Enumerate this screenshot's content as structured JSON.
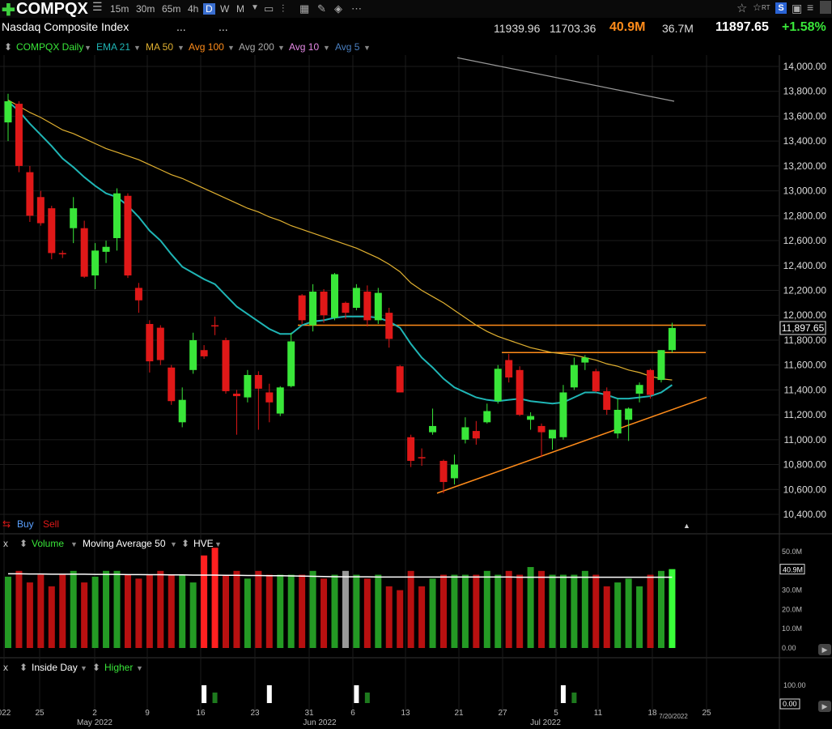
{
  "header": {
    "plus_icon": "plus-icon",
    "symbol": "COMPQX",
    "timeframes": [
      "15m",
      "30m",
      "65m",
      "4h",
      "D",
      "W",
      "M"
    ],
    "active_timeframe": "D",
    "name": "Nasdaq Composite Index",
    "dots1": "...",
    "dots2": "...",
    "high": "11939.96",
    "low": "11703.36",
    "volume": "40.9M",
    "avg_volume": "36.7M",
    "last": "11897.65",
    "change_pct": "+1.58%",
    "right_icons": [
      "star-icon",
      "rt-icon",
      "s-icon",
      "save-icon",
      "menu-icon"
    ],
    "rt_label": "RT",
    "s_label": "S"
  },
  "legend": {
    "series": "COMPQX Daily",
    "ema": "EMA 21",
    "ma": "MA 50",
    "avg100": "Avg 100",
    "avg200": "Avg 200",
    "avg10": "Avg 10",
    "avg5": "Avg 5"
  },
  "buy_label": "Buy",
  "sell_label": "Sell",
  "volume_panel": {
    "close": "x",
    "label": "Volume",
    "ma": "Moving Average 50",
    "hve": "HVE",
    "current": "40.9M",
    "ticks": [
      "50.0M",
      "40.0M",
      "30.0M",
      "20.0M",
      "10.0M",
      "0.00"
    ]
  },
  "inside_panel": {
    "close": "x",
    "label": "Inside Day",
    "higher": "Higher",
    "ticks": [
      "100.00",
      "0.00"
    ]
  },
  "price_axis": {
    "last_label": "11,897.65",
    "ticks": [
      "14,000.00",
      "13,800.00",
      "13,600.00",
      "13,400.00",
      "13,200.00",
      "13,000.00",
      "12,800.00",
      "12,600.00",
      "12,400.00",
      "12,200.00",
      "12,000.00",
      "11,800.00",
      "11,600.00",
      "11,400.00",
      "11,200.00",
      "11,000.00",
      "10,800.00",
      "10,600.00",
      "10,400.00"
    ]
  },
  "date_axis": {
    "labels": [
      "022",
      "25",
      "May 2022",
      "2",
      "9",
      "16",
      "23",
      "31",
      "Jun 2022",
      "6",
      "13",
      "21",
      "27",
      "Jul 2022",
      "5",
      "11",
      "18",
      "7/20/2022",
      "25"
    ]
  },
  "colors": {
    "up": "#39e639",
    "down": "#e01818",
    "ema": "#1fb5b5",
    "ma50": "#e0b030",
    "avg200": "#999999",
    "trendline": "#ff8c1a",
    "change": "#39e639",
    "volume_value": "#ff8c1a"
  },
  "chart_data": {
    "type": "candlestick",
    "ylim": [
      10400,
      14000
    ],
    "candles": [
      {
        "o": 13550,
        "h": 13780,
        "l": 13400,
        "c": 13720
      },
      {
        "o": 13700,
        "h": 13720,
        "l": 13150,
        "c": 13200
      },
      {
        "o": 13150,
        "h": 13200,
        "l": 12750,
        "c": 12800
      },
      {
        "o": 12950,
        "h": 13000,
        "l": 12720,
        "c": 12740
      },
      {
        "o": 12860,
        "h": 12880,
        "l": 12450,
        "c": 12500
      },
      {
        "o": 12500,
        "h": 12520,
        "l": 12460,
        "c": 12490
      },
      {
        "o": 12700,
        "h": 12950,
        "l": 12580,
        "c": 12860
      },
      {
        "o": 12700,
        "h": 12760,
        "l": 12300,
        "c": 12310
      },
      {
        "o": 12320,
        "h": 12580,
        "l": 12210,
        "c": 12520
      },
      {
        "o": 12510,
        "h": 12600,
        "l": 12420,
        "c": 12550
      },
      {
        "o": 12620,
        "h": 13020,
        "l": 12520,
        "c": 12980
      },
      {
        "o": 12960,
        "h": 12980,
        "l": 12300,
        "c": 12320
      },
      {
        "o": 12220,
        "h": 12260,
        "l": 12020,
        "c": 12120
      },
      {
        "o": 11930,
        "h": 11960,
        "l": 11540,
        "c": 11630
      },
      {
        "o": 11900,
        "h": 11920,
        "l": 11600,
        "c": 11640
      },
      {
        "o": 11580,
        "h": 11600,
        "l": 11280,
        "c": 11310
      },
      {
        "o": 11140,
        "h": 11420,
        "l": 11100,
        "c": 11320
      },
      {
        "o": 11560,
        "h": 11860,
        "l": 11530,
        "c": 11800
      },
      {
        "o": 11720,
        "h": 11760,
        "l": 11650,
        "c": 11670
      },
      {
        "o": 11920,
        "h": 11990,
        "l": 11840,
        "c": 11910
      },
      {
        "o": 11800,
        "h": 11820,
        "l": 11370,
        "c": 11390
      },
      {
        "o": 11370,
        "h": 11400,
        "l": 11040,
        "c": 11350
      },
      {
        "o": 11340,
        "h": 11560,
        "l": 11300,
        "c": 11520
      },
      {
        "o": 11520,
        "h": 11550,
        "l": 11080,
        "c": 11410
      },
      {
        "o": 11380,
        "h": 11450,
        "l": 11140,
        "c": 11300
      },
      {
        "o": 11210,
        "h": 11430,
        "l": 11190,
        "c": 11420
      },
      {
        "o": 11430,
        "h": 11860,
        "l": 11420,
        "c": 11790
      },
      {
        "o": 12160,
        "h": 12170,
        "l": 11930,
        "c": 11960
      },
      {
        "o": 11920,
        "h": 12250,
        "l": 11870,
        "c": 12190
      },
      {
        "o": 12190,
        "h": 12210,
        "l": 11940,
        "c": 12000
      },
      {
        "o": 11980,
        "h": 12340,
        "l": 11960,
        "c": 12330
      },
      {
        "o": 12100,
        "h": 12110,
        "l": 11970,
        "c": 12020
      },
      {
        "o": 12060,
        "h": 12250,
        "l": 12040,
        "c": 12220
      },
      {
        "o": 12190,
        "h": 12240,
        "l": 11910,
        "c": 11960
      },
      {
        "o": 11960,
        "h": 12220,
        "l": 11930,
        "c": 12180
      },
      {
        "o": 12020,
        "h": 12060,
        "l": 11740,
        "c": 11810
      },
      {
        "o": 11590,
        "h": 11600,
        "l": 11380,
        "c": 11380
      },
      {
        "o": 11020,
        "h": 11040,
        "l": 10780,
        "c": 10830
      },
      {
        "o": 10860,
        "h": 10930,
        "l": 10790,
        "c": 10850
      },
      {
        "o": 11060,
        "h": 11250,
        "l": 11040,
        "c": 11110
      },
      {
        "o": 10830,
        "h": 10840,
        "l": 10570,
        "c": 10660
      },
      {
        "o": 10690,
        "h": 10880,
        "l": 10640,
        "c": 10800
      },
      {
        "o": 11000,
        "h": 11180,
        "l": 10970,
        "c": 11100
      },
      {
        "o": 11070,
        "h": 11150,
        "l": 10960,
        "c": 11010
      },
      {
        "o": 11140,
        "h": 11290,
        "l": 11130,
        "c": 11230
      },
      {
        "o": 11310,
        "h": 11600,
        "l": 11290,
        "c": 11570
      },
      {
        "o": 11640,
        "h": 11690,
        "l": 11460,
        "c": 11500
      },
      {
        "o": 11560,
        "h": 11590,
        "l": 11190,
        "c": 11200
      },
      {
        "o": 11160,
        "h": 11220,
        "l": 11080,
        "c": 11190
      },
      {
        "o": 11110,
        "h": 11130,
        "l": 10860,
        "c": 11060
      },
      {
        "o": 11010,
        "h": 11080,
        "l": 10920,
        "c": 11080
      },
      {
        "o": 11020,
        "h": 11440,
        "l": 11000,
        "c": 11380
      },
      {
        "o": 11420,
        "h": 11660,
        "l": 11400,
        "c": 11600
      },
      {
        "o": 11620,
        "h": 11680,
        "l": 11560,
        "c": 11660
      },
      {
        "o": 11550,
        "h": 11570,
        "l": 11380,
        "c": 11390
      },
      {
        "o": 11390,
        "h": 11420,
        "l": 11200,
        "c": 11240
      },
      {
        "o": 11050,
        "h": 11330,
        "l": 11010,
        "c": 11240
      },
      {
        "o": 11160,
        "h": 11260,
        "l": 10990,
        "c": 11250
      },
      {
        "o": 11370,
        "h": 11460,
        "l": 11300,
        "c": 11440
      },
      {
        "o": 11560,
        "h": 11570,
        "l": 11330,
        "c": 11360
      },
      {
        "o": 11480,
        "h": 11720,
        "l": 11460,
        "c": 11720
      },
      {
        "o": 11720,
        "h": 11940,
        "l": 11700,
        "c": 11898
      }
    ],
    "ema21": [
      13720,
      13640,
      13540,
      13450,
      13360,
      13260,
      13190,
      13110,
      13040,
      12980,
      12950,
      12880,
      12790,
      12680,
      12600,
      12490,
      12390,
      12340,
      12290,
      12250,
      12160,
      12070,
      12010,
      11950,
      11890,
      11850,
      11850,
      11920,
      11950,
      11960,
      11980,
      11990,
      11990,
      11990,
      11980,
      11950,
      11900,
      11770,
      11660,
      11580,
      11490,
      11420,
      11380,
      11340,
      11320,
      11310,
      11320,
      11330,
      11310,
      11300,
      11290,
      11300,
      11340,
      11380,
      11380,
      11360,
      11330,
      11330,
      11340,
      11350,
      11380,
      11440
    ],
    "ma50": [
      13730,
      13680,
      13630,
      13590,
      13540,
      13490,
      13460,
      13420,
      13380,
      13340,
      13310,
      13280,
      13250,
      13210,
      13170,
      13130,
      13100,
      13060,
      13020,
      12980,
      12940,
      12900,
      12860,
      12830,
      12790,
      12760,
      12720,
      12690,
      12660,
      12630,
      12600,
      12570,
      12540,
      12500,
      12460,
      12410,
      12350,
      12260,
      12200,
      12150,
      12100,
      12040,
      11980,
      11920,
      11870,
      11830,
      11800,
      11770,
      11740,
      11720,
      11700,
      11690,
      11680,
      11660,
      11640,
      11610,
      11590,
      11560,
      11540,
      11510,
      11490,
      11480
    ],
    "avg200": {
      "start_value": 14070,
      "end_value": 13720
    },
    "horizontal_lines": [
      11920,
      11700
    ],
    "support_line": {
      "from": 10570,
      "to": 11340
    },
    "volume": [
      37,
      40,
      34,
      38,
      32,
      38,
      40,
      34,
      37,
      40,
      40,
      38,
      36,
      38,
      40,
      38,
      38,
      34,
      48,
      52,
      38,
      40,
      36,
      40,
      38,
      38,
      38,
      38,
      40,
      36,
      38,
      40,
      38,
      36,
      38,
      32,
      30,
      40,
      32,
      36,
      38,
      38,
      38,
      38,
      40,
      38,
      40,
      38,
      42,
      40,
      38,
      38,
      38,
      40,
      38,
      32,
      34,
      36,
      32,
      38,
      40,
      40.9
    ],
    "volume_ma50": [
      38.5,
      38.5,
      38.4,
      38.4,
      38.3,
      38.3,
      38.3,
      38.3,
      38.2,
      38.2,
      38.2,
      38.1,
      38.1,
      38.0,
      38.0,
      37.9,
      37.9,
      37.8,
      37.8,
      37.8,
      37.7,
      37.7,
      37.6,
      37.6,
      37.5,
      37.5,
      37.4,
      37.3,
      37.2,
      37.1,
      37.0,
      36.9,
      36.9,
      36.9,
      36.8,
      36.8,
      36.8,
      36.8,
      36.8,
      36.8,
      36.8,
      36.8,
      36.8,
      36.8,
      36.8,
      36.8,
      36.8,
      36.7,
      36.7,
      36.7,
      36.7,
      36.7,
      36.7,
      36.7,
      36.7,
      36.7,
      36.7,
      36.7,
      36.7,
      36.7,
      36.7,
      36.7
    ],
    "inside_day": [
      {
        "index": 18,
        "up": false
      },
      {
        "index": 19,
        "up": true
      },
      {
        "index": 24,
        "up": false
      },
      {
        "index": 32,
        "up": false
      },
      {
        "index": 33,
        "up": true
      },
      {
        "index": 51,
        "up": false
      },
      {
        "index": 52,
        "up": true
      }
    ]
  }
}
